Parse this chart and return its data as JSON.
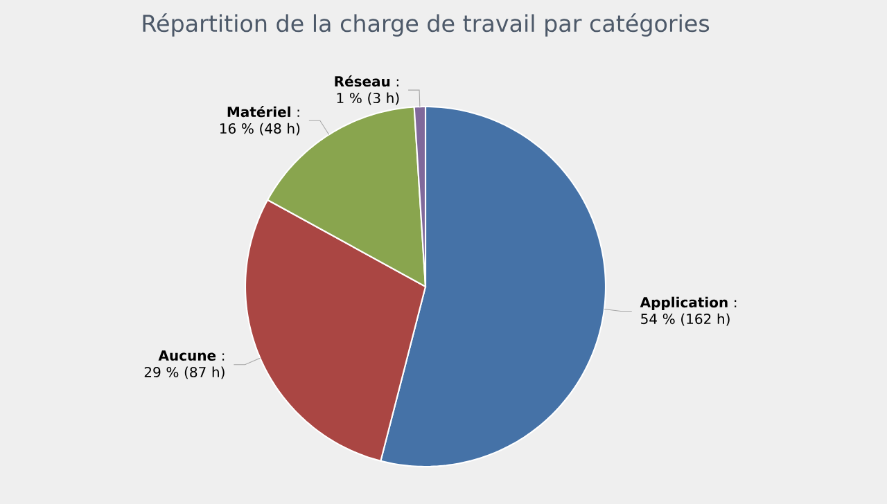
{
  "chart_data": {
    "type": "pie",
    "title": "Répartition de la charge de travail par catégories",
    "categories": [
      "Application",
      "Aucune",
      "Matériel",
      "Réseau"
    ],
    "values": [
      54,
      29,
      16,
      1
    ],
    "value_labels": [
      ": 54 % (162 h)",
      ": 29 % (87 h)",
      ": 16 % (48 h)",
      ": 1 % (3 h)"
    ],
    "colors": [
      "#4572a7",
      "#aa4643",
      "#89a54e",
      "#80699b"
    ]
  }
}
